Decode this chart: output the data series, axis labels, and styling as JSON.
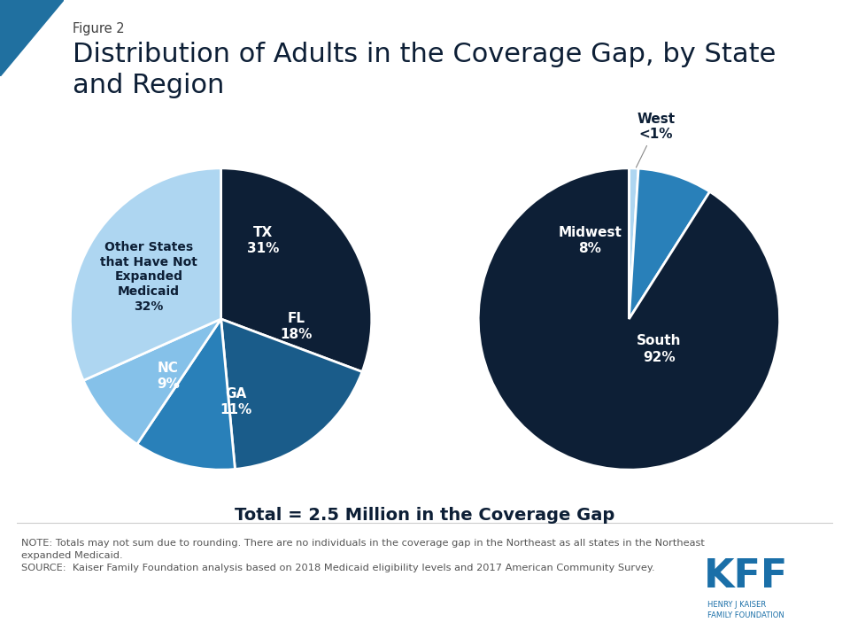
{
  "figure_label": "Figure 2",
  "title": "Distribution of Adults in the Coverage Gap, by State\nand Region",
  "subtitle": "Total = 2.5 Million in the Coverage Gap",
  "note": "NOTE: Totals may not sum due to rounding. There are no individuals in the coverage gap in the Northeast as all states in the Northeast\nexpanded Medicaid.\nSOURCE:  Kaiser Family Foundation analysis based on 2018 Medicaid eligibility levels and 2017 American Community Survey.",
  "pie1_values": [
    31,
    18,
    11,
    9,
    32
  ],
  "pie1_colors": [
    "#0d1f36",
    "#1a5c8a",
    "#2980b9",
    "#85c1e9",
    "#aed6f1"
  ],
  "pie2_values": [
    1,
    8,
    91
  ],
  "pie2_colors": [
    "#aed6f1",
    "#2980b9",
    "#0d1f36"
  ],
  "bg_color": "#ffffff",
  "dark_navy": "#0d1f36",
  "mid_blue": "#1a5c8a",
  "bright_blue": "#2980b9",
  "light_blue": "#85c1e9",
  "pale_blue": "#aed6f1",
  "header_blue": "#2070a0",
  "text_dark": "#404040",
  "text_gray": "#555555",
  "kff_blue": "#1a6fa8"
}
